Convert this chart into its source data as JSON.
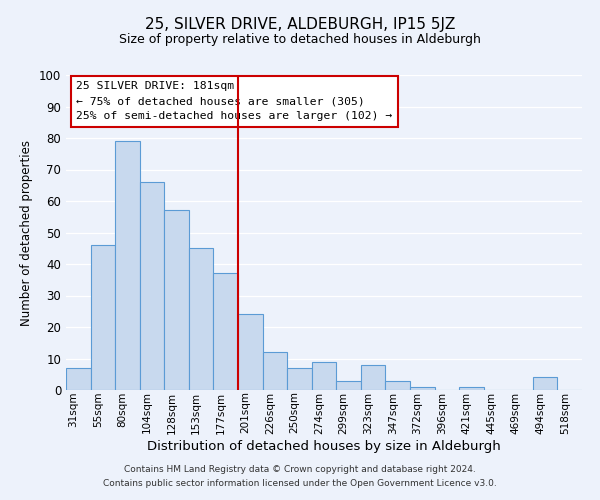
{
  "title": "25, SILVER DRIVE, ALDEBURGH, IP15 5JZ",
  "subtitle": "Size of property relative to detached houses in Aldeburgh",
  "xlabel": "Distribution of detached houses by size in Aldeburgh",
  "ylabel": "Number of detached properties",
  "bin_labels": [
    "31sqm",
    "55sqm",
    "80sqm",
    "104sqm",
    "128sqm",
    "153sqm",
    "177sqm",
    "201sqm",
    "226sqm",
    "250sqm",
    "274sqm",
    "299sqm",
    "323sqm",
    "347sqm",
    "372sqm",
    "396sqm",
    "421sqm",
    "445sqm",
    "469sqm",
    "494sqm",
    "518sqm"
  ],
  "bar_heights": [
    7,
    46,
    79,
    66,
    57,
    45,
    37,
    24,
    12,
    7,
    9,
    3,
    8,
    3,
    1,
    0,
    1,
    0,
    0,
    4,
    0
  ],
  "bar_color": "#c8d9ee",
  "bar_edge_color": "#5b9bd5",
  "background_color": "#edf2fb",
  "grid_color": "#ffffff",
  "vline_x_index": 6,
  "vline_color": "#cc0000",
  "annotation_title": "25 SILVER DRIVE: 181sqm",
  "annotation_line1": "← 75% of detached houses are smaller (305)",
  "annotation_line2": "25% of semi-detached houses are larger (102) →",
  "annotation_box_color": "#ffffff",
  "annotation_box_edge_color": "#cc0000",
  "ylim": [
    0,
    100
  ],
  "footer_line1": "Contains HM Land Registry data © Crown copyright and database right 2024.",
  "footer_line2": "Contains public sector information licensed under the Open Government Licence v3.0."
}
